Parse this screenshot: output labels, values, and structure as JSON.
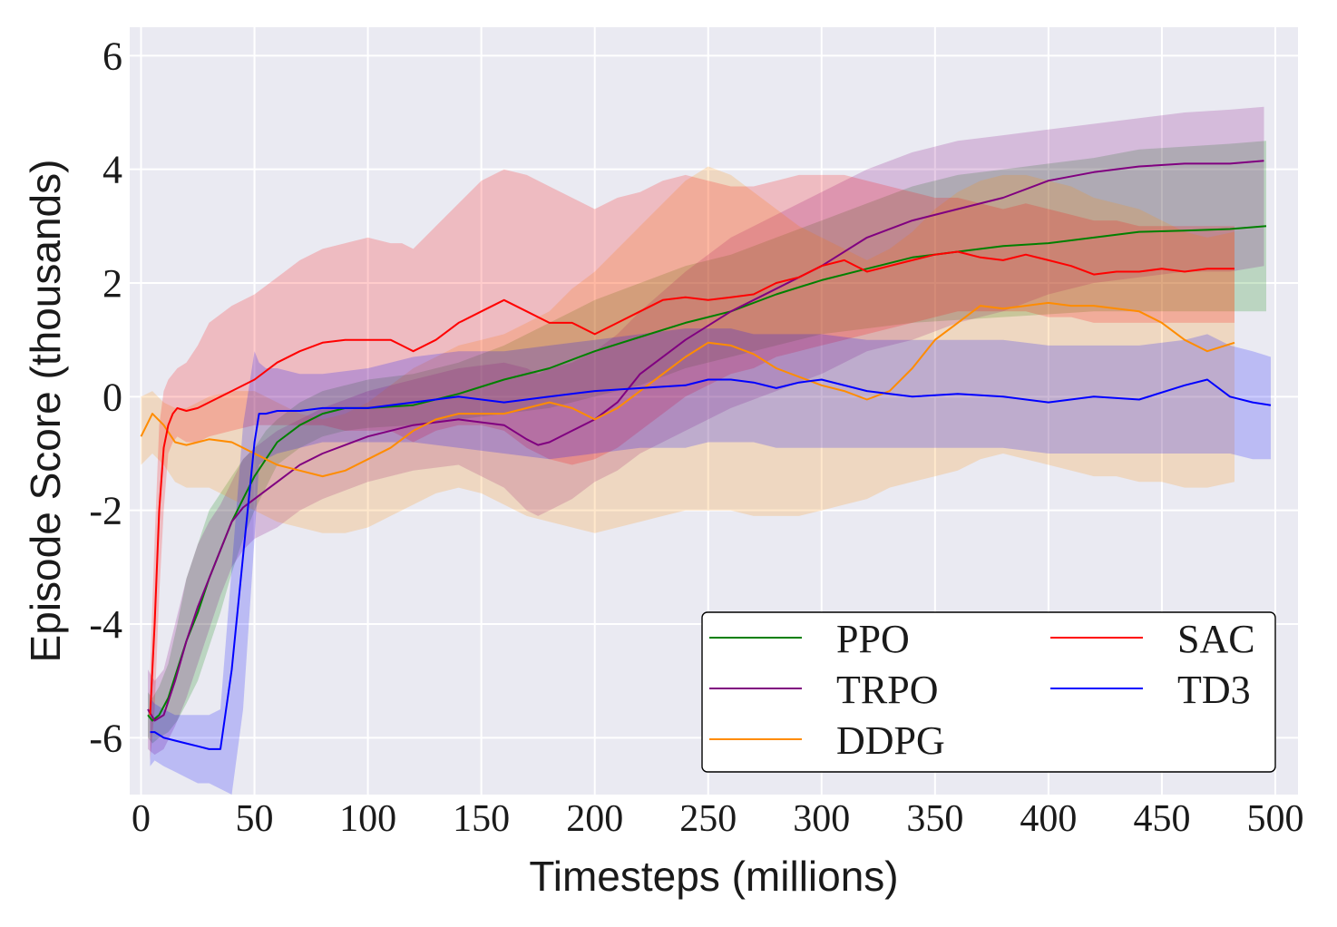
{
  "chart_data": {
    "type": "line",
    "xlabel": "Timesteps (millions)",
    "ylabel": "Episode Score (thousands)",
    "xlim": [
      -5,
      510
    ],
    "ylim": [
      -7,
      6.5
    ],
    "xticks": [
      0,
      50,
      100,
      150,
      200,
      250,
      300,
      350,
      400,
      450,
      500
    ],
    "yticks": [
      -6,
      -4,
      -2,
      0,
      2,
      4,
      6
    ],
    "ytick_labels": [
      "-6",
      "-4",
      "-2",
      "0",
      "2",
      "4",
      "6"
    ],
    "grid": true,
    "legend_position": "lower-right",
    "legend_columns": 2,
    "series": [
      {
        "name": "PPO",
        "color": "#008000",
        "x": [
          3,
          5,
          8,
          12,
          16,
          20,
          25,
          30,
          35,
          40,
          45,
          50,
          55,
          60,
          70,
          80,
          90,
          100,
          120,
          140,
          160,
          180,
          200,
          220,
          240,
          260,
          280,
          300,
          320,
          340,
          360,
          380,
          400,
          420,
          440,
          460,
          480,
          496
        ],
        "values": [
          -5.6,
          -5.7,
          -5.6,
          -5.3,
          -4.8,
          -4.3,
          -3.8,
          -3.2,
          -2.7,
          -2.2,
          -1.8,
          -1.4,
          -1.1,
          -0.8,
          -0.5,
          -0.3,
          -0.2,
          -0.2,
          -0.15,
          0.05,
          0.3,
          0.5,
          0.8,
          1.05,
          1.3,
          1.5,
          1.8,
          2.05,
          2.25,
          2.45,
          2.55,
          2.65,
          2.7,
          2.8,
          2.9,
          2.92,
          2.95,
          3.0
        ],
        "lower": [
          -6.0,
          -6.1,
          -6.0,
          -5.9,
          -5.7,
          -5.4,
          -5.0,
          -4.4,
          -3.8,
          -3.1,
          -2.5,
          -2.0,
          -1.6,
          -1.2,
          -0.9,
          -0.7,
          -0.6,
          -0.55,
          -0.5,
          -0.4,
          -0.3,
          -0.2,
          0.0,
          0.2,
          0.5,
          0.7,
          0.9,
          1.1,
          1.2,
          1.3,
          1.35,
          1.4,
          1.45,
          1.5,
          1.5,
          1.5,
          1.5,
          1.5
        ],
        "upper": [
          -5.2,
          -5.3,
          -5.1,
          -4.7,
          -4.0,
          -3.2,
          -2.6,
          -2.0,
          -1.7,
          -1.4,
          -1.1,
          -0.9,
          -0.6,
          -0.4,
          -0.1,
          0.1,
          0.2,
          0.3,
          0.4,
          0.6,
          0.9,
          1.3,
          1.7,
          2.0,
          2.3,
          2.5,
          2.8,
          3.1,
          3.4,
          3.7,
          3.9,
          4.0,
          4.1,
          4.2,
          4.35,
          4.4,
          4.45,
          4.5
        ]
      },
      {
        "name": "TRPO",
        "color": "#800080",
        "x": [
          3,
          6,
          10,
          15,
          20,
          25,
          30,
          35,
          40,
          45,
          50,
          60,
          70,
          80,
          100,
          120,
          140,
          160,
          170,
          175,
          180,
          190,
          200,
          210,
          220,
          240,
          260,
          280,
          300,
          320,
          340,
          360,
          380,
          400,
          420,
          440,
          460,
          480,
          495
        ],
        "values": [
          -5.5,
          -5.7,
          -5.6,
          -5.0,
          -4.3,
          -3.7,
          -3.2,
          -2.7,
          -2.2,
          -1.95,
          -1.8,
          -1.5,
          -1.2,
          -1.0,
          -0.7,
          -0.5,
          -0.4,
          -0.5,
          -0.75,
          -0.85,
          -0.8,
          -0.6,
          -0.4,
          -0.1,
          0.4,
          1.0,
          1.5,
          1.9,
          2.3,
          2.8,
          3.1,
          3.3,
          3.5,
          3.8,
          3.95,
          4.05,
          4.1,
          4.1,
          4.15
        ],
        "lower": [
          -6.2,
          -6.3,
          -6.2,
          -5.8,
          -5.3,
          -4.7,
          -4.1,
          -3.5,
          -3.0,
          -2.7,
          -2.5,
          -2.3,
          -2.0,
          -1.8,
          -1.5,
          -1.3,
          -1.2,
          -1.6,
          -2.0,
          -2.1,
          -2.0,
          -1.8,
          -1.5,
          -1.3,
          -1.0,
          -0.6,
          -0.2,
          0.1,
          0.4,
          0.8,
          1.0,
          1.3,
          1.5,
          1.8,
          2.0,
          2.1,
          2.2,
          2.2,
          2.3
        ],
        "upper": [
          -4.8,
          -5.0,
          -4.8,
          -4.0,
          -3.2,
          -2.6,
          -2.2,
          -1.9,
          -1.5,
          -1.1,
          -0.9,
          -0.6,
          -0.4,
          -0.2,
          0.1,
          0.3,
          0.5,
          0.6,
          0.5,
          0.4,
          0.5,
          0.6,
          0.8,
          1.1,
          1.5,
          2.2,
          2.8,
          3.2,
          3.6,
          4.0,
          4.3,
          4.5,
          4.6,
          4.7,
          4.8,
          4.9,
          5.0,
          5.05,
          5.1
        ]
      },
      {
        "name": "DDPG",
        "color": "#ff8c00",
        "x": [
          0,
          5,
          10,
          15,
          20,
          25,
          30,
          40,
          50,
          60,
          70,
          80,
          90,
          100,
          110,
          120,
          130,
          140,
          150,
          160,
          170,
          180,
          190,
          200,
          210,
          220,
          230,
          240,
          250,
          260,
          270,
          280,
          290,
          300,
          310,
          320,
          330,
          340,
          350,
          360,
          370,
          380,
          390,
          400,
          410,
          420,
          430,
          440,
          450,
          460,
          470,
          482
        ],
        "values": [
          -0.7,
          -0.3,
          -0.5,
          -0.8,
          -0.85,
          -0.8,
          -0.75,
          -0.8,
          -1.0,
          -1.2,
          -1.3,
          -1.4,
          -1.3,
          -1.1,
          -0.9,
          -0.6,
          -0.4,
          -0.3,
          -0.3,
          -0.3,
          -0.2,
          -0.1,
          -0.2,
          -0.4,
          -0.2,
          0.1,
          0.4,
          0.7,
          0.95,
          0.9,
          0.75,
          0.5,
          0.35,
          0.2,
          0.1,
          -0.05,
          0.1,
          0.5,
          1.0,
          1.3,
          1.6,
          1.55,
          1.6,
          1.65,
          1.6,
          1.6,
          1.55,
          1.5,
          1.3,
          1.0,
          0.8,
          0.95
        ],
        "lower": [
          -1.2,
          -1.0,
          -1.2,
          -1.5,
          -1.6,
          -1.6,
          -1.6,
          -1.8,
          -2.0,
          -2.2,
          -2.3,
          -2.4,
          -2.4,
          -2.3,
          -2.1,
          -1.9,
          -1.7,
          -1.6,
          -1.7,
          -1.9,
          -2.1,
          -2.2,
          -2.3,
          -2.4,
          -2.3,
          -2.2,
          -2.1,
          -2.0,
          -2.0,
          -2.0,
          -2.1,
          -2.1,
          -2.1,
          -2.0,
          -1.9,
          -1.8,
          -1.6,
          -1.5,
          -1.4,
          -1.3,
          -1.1,
          -1.0,
          -1.1,
          -1.2,
          -1.3,
          -1.4,
          -1.4,
          -1.5,
          -1.5,
          -1.6,
          -1.6,
          -1.5
        ],
        "upper": [
          0.0,
          0.1,
          -0.1,
          -0.2,
          -0.2,
          -0.1,
          0.0,
          0.1,
          0.1,
          -0.1,
          -0.3,
          -0.4,
          -0.3,
          -0.1,
          0.2,
          0.5,
          0.7,
          0.9,
          1.0,
          1.1,
          1.3,
          1.5,
          1.9,
          2.2,
          2.6,
          3.0,
          3.4,
          3.8,
          4.05,
          3.9,
          3.6,
          3.3,
          3.0,
          2.8,
          2.6,
          2.4,
          2.6,
          2.9,
          3.3,
          3.6,
          3.8,
          3.9,
          3.9,
          3.8,
          3.7,
          3.5,
          3.4,
          3.3,
          3.1,
          2.9,
          2.8,
          2.9
        ]
      },
      {
        "name": "SAC",
        "color": "#ff0000",
        "x": [
          4,
          6,
          8,
          10,
          12,
          14,
          16,
          20,
          25,
          30,
          40,
          50,
          60,
          70,
          80,
          90,
          100,
          110,
          115,
          120,
          130,
          140,
          150,
          160,
          170,
          180,
          190,
          200,
          210,
          220,
          230,
          240,
          250,
          260,
          270,
          280,
          290,
          300,
          310,
          320,
          330,
          340,
          350,
          360,
          370,
          380,
          390,
          400,
          410,
          420,
          430,
          440,
          450,
          460,
          470,
          482
        ],
        "values": [
          -5.6,
          -4.0,
          -2.0,
          -0.9,
          -0.5,
          -0.3,
          -0.2,
          -0.25,
          -0.2,
          -0.1,
          0.1,
          0.3,
          0.6,
          0.8,
          0.95,
          1.0,
          1.0,
          1.0,
          0.9,
          0.8,
          1.0,
          1.3,
          1.5,
          1.7,
          1.5,
          1.3,
          1.3,
          1.1,
          1.3,
          1.5,
          1.7,
          1.75,
          1.7,
          1.75,
          1.8,
          2.0,
          2.1,
          2.3,
          2.4,
          2.2,
          2.3,
          2.4,
          2.5,
          2.55,
          2.45,
          2.4,
          2.5,
          2.4,
          2.3,
          2.15,
          2.2,
          2.2,
          2.25,
          2.2,
          2.25,
          2.25
        ],
        "lower": [
          -6.4,
          -5.5,
          -3.5,
          -2.0,
          -1.0,
          -0.8,
          -0.7,
          -0.8,
          -0.8,
          -0.7,
          -0.6,
          -0.5,
          -0.5,
          -0.5,
          -0.5,
          -0.6,
          -0.6,
          -0.6,
          -0.7,
          -0.8,
          -0.6,
          -0.5,
          -0.5,
          -0.6,
          -0.9,
          -1.1,
          -1.2,
          -1.1,
          -0.9,
          -0.6,
          -0.3,
          0.0,
          0.2,
          0.4,
          0.5,
          0.7,
          0.8,
          0.9,
          1.0,
          1.1,
          1.2,
          1.3,
          1.4,
          1.5,
          1.5,
          1.5,
          1.5,
          1.4,
          1.4,
          1.3,
          1.3,
          1.3,
          1.3,
          1.3,
          1.3,
          1.3
        ],
        "upper": [
          -4.8,
          -2.5,
          -0.5,
          0.1,
          0.3,
          0.4,
          0.5,
          0.6,
          0.9,
          1.3,
          1.6,
          1.8,
          2.1,
          2.4,
          2.6,
          2.7,
          2.8,
          2.7,
          2.7,
          2.6,
          3.0,
          3.4,
          3.8,
          4.0,
          3.9,
          3.7,
          3.5,
          3.3,
          3.5,
          3.6,
          3.8,
          3.9,
          3.8,
          3.7,
          3.7,
          3.8,
          3.9,
          3.9,
          3.9,
          3.8,
          3.7,
          3.6,
          3.5,
          3.5,
          3.4,
          3.3,
          3.4,
          3.3,
          3.2,
          3.1,
          3.1,
          3.0,
          3.0,
          3.0,
          3.0,
          3.0
        ]
      },
      {
        "name": "TD3",
        "color": "#0000ff",
        "x": [
          4,
          6,
          10,
          15,
          20,
          25,
          30,
          35,
          40,
          45,
          50,
          52,
          55,
          60,
          70,
          80,
          100,
          120,
          140,
          160,
          180,
          200,
          220,
          240,
          250,
          260,
          270,
          280,
          290,
          300,
          320,
          340,
          360,
          380,
          400,
          420,
          440,
          460,
          470,
          480,
          490,
          498
        ],
        "values": [
          -5.9,
          -5.9,
          -6.0,
          -6.05,
          -6.1,
          -6.15,
          -6.2,
          -6.2,
          -4.8,
          -2.8,
          -0.8,
          -0.3,
          -0.3,
          -0.25,
          -0.25,
          -0.2,
          -0.2,
          -0.1,
          0.0,
          -0.1,
          0.0,
          0.1,
          0.15,
          0.2,
          0.3,
          0.3,
          0.25,
          0.15,
          0.25,
          0.3,
          0.1,
          0.0,
          0.05,
          0.0,
          -0.1,
          0.0,
          -0.05,
          0.2,
          0.3,
          0.0,
          -0.1,
          -0.15
        ],
        "lower": [
          -6.5,
          -6.4,
          -6.5,
          -6.6,
          -6.7,
          -6.8,
          -6.8,
          -6.9,
          -7.0,
          -5.5,
          -2.5,
          -1.2,
          -1.1,
          -1.0,
          -0.9,
          -0.8,
          -0.8,
          -0.8,
          -0.9,
          -1.0,
          -1.1,
          -1.0,
          -0.9,
          -0.9,
          -0.8,
          -0.8,
          -0.8,
          -0.9,
          -0.9,
          -0.9,
          -0.9,
          -0.9,
          -0.9,
          -0.9,
          -1.0,
          -1.0,
          -1.0,
          -1.0,
          -1.0,
          -1.0,
          -1.1,
          -1.1
        ],
        "upper": [
          -5.3,
          -5.4,
          -5.5,
          -5.6,
          -5.6,
          -5.6,
          -5.6,
          -5.5,
          -3.0,
          -0.5,
          0.8,
          0.6,
          0.5,
          0.5,
          0.4,
          0.4,
          0.5,
          0.7,
          0.8,
          0.8,
          0.9,
          1.0,
          1.1,
          1.2,
          1.2,
          1.2,
          1.1,
          1.1,
          1.1,
          1.1,
          1.0,
          1.0,
          1.0,
          1.0,
          0.9,
          0.9,
          0.9,
          1.0,
          1.1,
          0.9,
          0.8,
          0.7
        ]
      }
    ]
  }
}
